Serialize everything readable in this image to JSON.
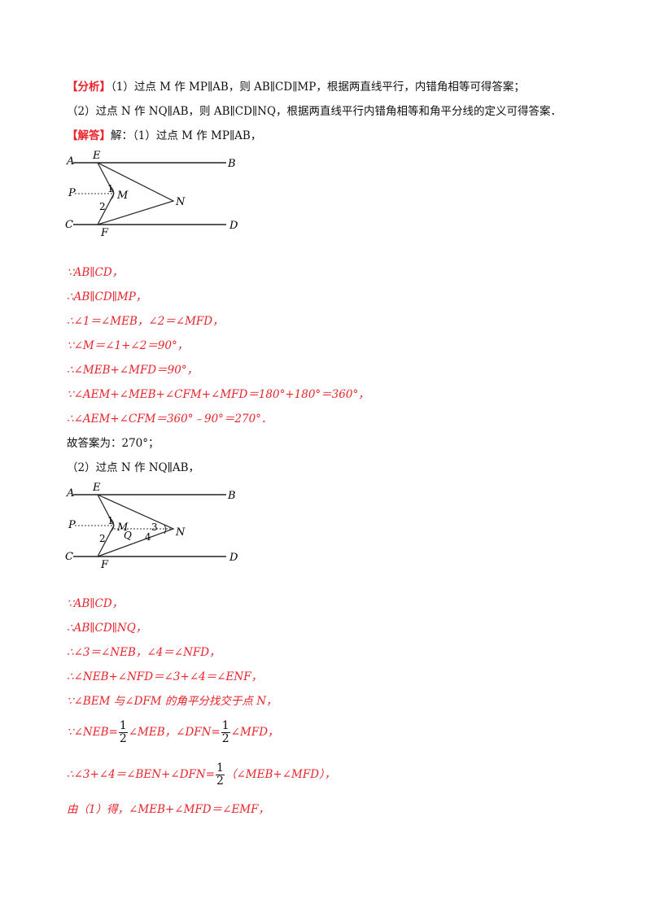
{
  "analysis": {
    "tag": "【分析】",
    "part1": "（1）过点 M 作 MP∥AB，则 AB∥CD∥MP，根据两直线平行，内错角相等可得答案；",
    "part2": "（2）过点 N 作 NQ∥AB，则 AB∥CD∥NQ，根据两直线平行内错角相等和角平分线的定义可得答案．"
  },
  "solution": {
    "tag": "【解答】",
    "intro": "解：（1）过点 M 作 MP∥AB，",
    "steps1": [
      "∵AB∥CD，",
      "∴AB∥CD∥MP，",
      "∴∠1＝∠MEB，∠2＝∠MFD，",
      "∵∠M＝∠1+∠2＝90°，",
      "∴∠MEB+∠MFD＝90°，",
      "∵∠AEM+∠MEB+∠CFM+∠MFD＝180°+180°＝360°，",
      "∴∠AEM+∠CFM＝360°﹣90°＝270°．"
    ],
    "answer1": "故答案为：270°；",
    "intro2": "（2）过点 N 作 NQ∥AB，",
    "steps2": [
      "∵AB∥CD，",
      "∴AB∥CD∥NQ，",
      "∴∠3＝∠NEB，∠4＝∠NFD，",
      "∴∠NEB+∠NFD＝∠3+∠4＝∠ENF，",
      "∵∠BEM 与∠DFM 的角平分找交于点 N，"
    ],
    "step_half_a": "∵∠NEB=",
    "step_half_b": "∠MEB，∠DFN=",
    "step_half_c": "∠MFD，",
    "step_sum_a": "∴∠3+∠4＝∠BEN+∠DFN=",
    "step_sum_b": "（∠MEB+∠MFD），",
    "frac_num": "1",
    "frac_den": "2",
    "last": "由（1）得，∠MEB+∠MFD＝∠EMF，"
  },
  "figure1": {
    "labels": [
      "A",
      "E",
      "B",
      "P",
      "1",
      "M",
      "N",
      "2",
      "C",
      "F",
      "D"
    ]
  },
  "figure2": {
    "labels": [
      "A",
      "E",
      "B",
      "P",
      "1",
      "M",
      "3",
      "N",
      "2",
      "Q",
      "4",
      "C",
      "F",
      "D"
    ]
  },
  "colors": {
    "accent_red": "#e8232a",
    "text": "#111111"
  }
}
